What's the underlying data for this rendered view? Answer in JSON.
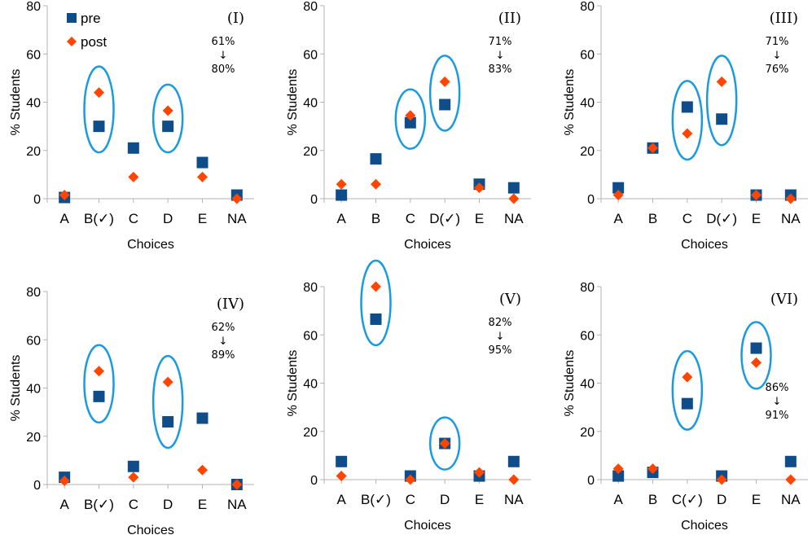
{
  "colors": {
    "pre": "#0e4d8a",
    "post": "#ff4500",
    "circle": "#1a9ae0",
    "axis": "#b3b3b3"
  },
  "legend": {
    "pre": "pre",
    "post": "post"
  },
  "chart_data": [
    {
      "type": "scatter",
      "panel": "(I)",
      "ylabel": "% Students",
      "xlabel": "Choices",
      "ylim": [
        0,
        80
      ],
      "yticks": [
        "0",
        "20",
        "40",
        "60",
        "80"
      ],
      "categories": [
        "A",
        "B(✓)",
        "C",
        "D",
        "E",
        "NA"
      ],
      "series": [
        {
          "name": "pre",
          "values": [
            0.5,
            30,
            21,
            30,
            15,
            1.5
          ]
        },
        {
          "name": "post",
          "values": [
            1.5,
            44,
            9,
            36.5,
            9,
            0
          ]
        }
      ],
      "circled": [
        1,
        3
      ],
      "annotation": {
        "from": "61%",
        "arrow": "↓",
        "to": "80%"
      }
    },
    {
      "type": "scatter",
      "panel": "(II)",
      "ylabel": "% Students",
      "xlabel": "Choices",
      "ylim": [
        0,
        80
      ],
      "yticks": [
        "0",
        "20",
        "40",
        "60",
        "80"
      ],
      "categories": [
        "A",
        "B",
        "C",
        "D(✓)",
        "E",
        "NA"
      ],
      "series": [
        {
          "name": "pre",
          "values": [
            1.5,
            16.5,
            31.5,
            39,
            6,
            4.5
          ]
        },
        {
          "name": "post",
          "values": [
            6,
            6,
            34.5,
            48.5,
            4.5,
            0
          ]
        }
      ],
      "circled": [
        2,
        3
      ],
      "annotation": {
        "from": "71%",
        "arrow": "↓",
        "to": "83%"
      }
    },
    {
      "type": "scatter",
      "panel": "(III)",
      "ylabel": "% Students",
      "xlabel": "Choices",
      "ylim": [
        0,
        80
      ],
      "yticks": [
        "0",
        "20",
        "40",
        "60",
        "80"
      ],
      "categories": [
        "A",
        "B",
        "C",
        "D(✓)",
        "E",
        "NA"
      ],
      "series": [
        {
          "name": "pre",
          "values": [
            4.5,
            21,
            38,
            33,
            1.5,
            1.5
          ]
        },
        {
          "name": "post",
          "values": [
            1.5,
            21,
            27,
            48.5,
            1.5,
            0
          ]
        }
      ],
      "circled": [
        2,
        3
      ],
      "annotation": {
        "from": "71%",
        "arrow": "↓",
        "to": "76%"
      }
    },
    {
      "type": "scatter",
      "panel": "(IV)",
      "ylabel": "% Students",
      "xlabel": "Choices",
      "ylim": [
        0,
        80
      ],
      "yticks": [
        "0",
        "20",
        "40",
        "60",
        "80"
      ],
      "categories": [
        "A",
        "B(✓)",
        "C",
        "D",
        "E",
        "NA"
      ],
      "series": [
        {
          "name": "pre",
          "values": [
            3,
            36.5,
            7.5,
            26,
            27.5,
            0
          ]
        },
        {
          "name": "post",
          "values": [
            1.5,
            47,
            3,
            42.5,
            6,
            0
          ]
        }
      ],
      "circled": [
        1,
        3
      ],
      "annotation": {
        "from": "62%",
        "arrow": "↓",
        "to": "89%"
      }
    },
    {
      "type": "scatter",
      "panel": "(V)",
      "ylabel": "% Students",
      "xlabel": "Choices",
      "ylim": [
        0,
        80
      ],
      "yticks": [
        "0",
        "20",
        "40",
        "60",
        "80"
      ],
      "categories": [
        "A",
        "B(✓)",
        "C",
        "D",
        "E",
        "NA"
      ],
      "series": [
        {
          "name": "pre",
          "values": [
            7.5,
            66.5,
            1.5,
            15,
            1.5,
            7.5
          ]
        },
        {
          "name": "post",
          "values": [
            1.5,
            80,
            0,
            15,
            3,
            0
          ]
        }
      ],
      "circled": [
        1,
        3
      ],
      "annotation": {
        "from": "82%",
        "arrow": "↓",
        "to": "95%"
      }
    },
    {
      "type": "scatter",
      "panel": "(VI)",
      "ylabel": "% Students",
      "xlabel": "Choices",
      "ylim": [
        0,
        80
      ],
      "yticks": [
        "0",
        "20",
        "40",
        "60",
        "80"
      ],
      "categories": [
        "A",
        "B",
        "C(✓)",
        "D",
        "E",
        "NA"
      ],
      "series": [
        {
          "name": "pre",
          "values": [
            1.5,
            3,
            31.5,
            1.5,
            54.5,
            7.5
          ]
        },
        {
          "name": "post",
          "values": [
            4.5,
            4.5,
            42.5,
            0,
            48.5,
            0
          ]
        }
      ],
      "circled": [
        2,
        4
      ],
      "annotation": {
        "from": "86%",
        "arrow": "↓",
        "to": "91%"
      }
    }
  ]
}
